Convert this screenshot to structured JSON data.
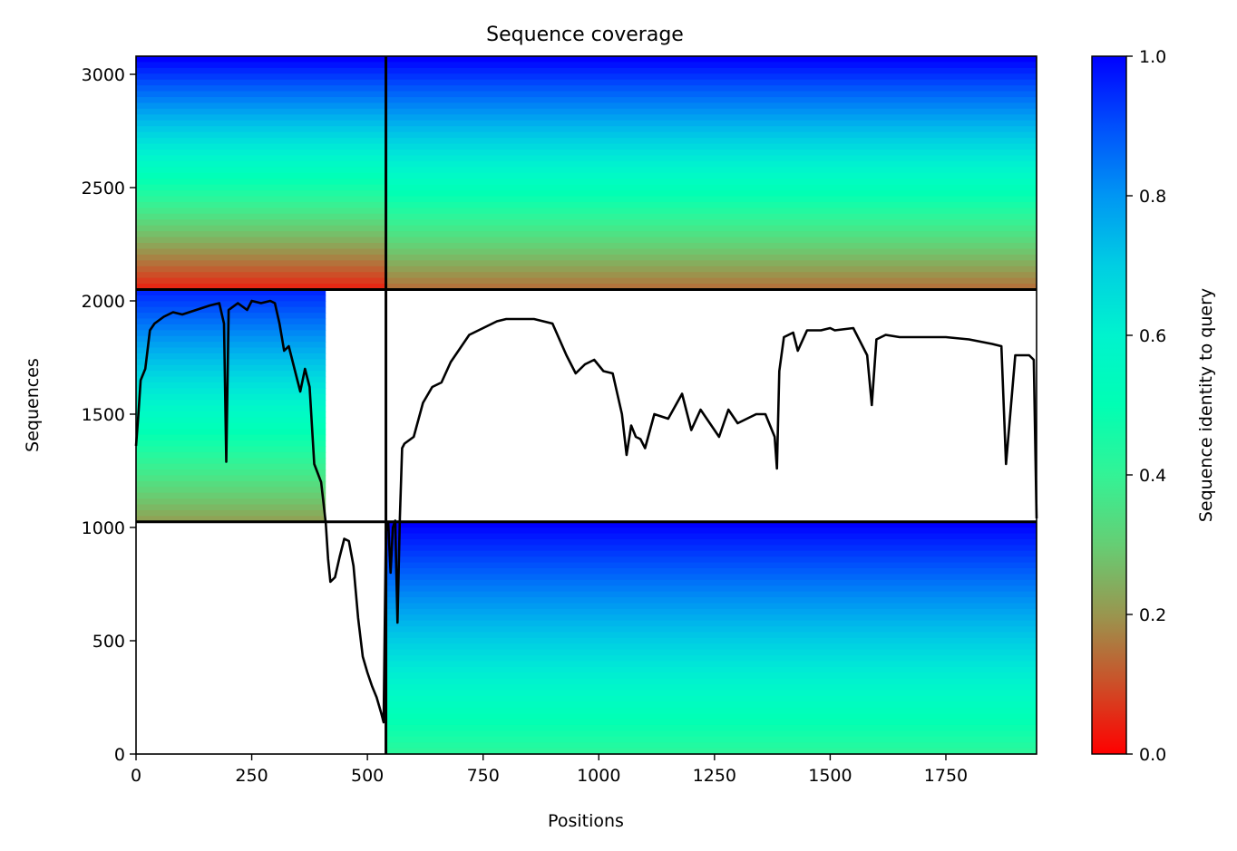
{
  "chart_data": {
    "type": "heatmap",
    "title": "Sequence coverage",
    "xlabel": "Positions",
    "ylabel": "Sequences",
    "xlim": [
      0,
      1946
    ],
    "ylim": [
      0,
      3080
    ],
    "xticks": [
      "0",
      "250",
      "500",
      "750",
      "1000",
      "1250",
      "1500",
      "1750"
    ],
    "xtick_values": [
      0,
      250,
      500,
      750,
      1000,
      1250,
      1500,
      1750
    ],
    "yticks": [
      "0",
      "500",
      "1000",
      "1500",
      "2000",
      "2500",
      "3000"
    ],
    "ytick_values": [
      0,
      500,
      1000,
      1500,
      2000,
      2500,
      3000
    ],
    "colorbar": {
      "label": "Sequence identity to query",
      "ticks": [
        "0.0",
        "0.2",
        "0.4",
        "0.6",
        "0.8",
        "1.0"
      ],
      "tick_values": [
        0,
        0.2,
        0.4,
        0.6,
        0.8,
        1.0
      ],
      "colormap": "rainbow_r"
    },
    "chain_boundaries": {
      "x": [
        540
      ],
      "y": [
        1025,
        2050
      ]
    },
    "blocks": [
      {
        "x": [
          0,
          540
        ],
        "y": [
          2050,
          3080
        ],
        "identity_top": 1.0,
        "identity_bottom": 0.05
      },
      {
        "x": [
          540,
          1946
        ],
        "y": [
          2050,
          3080
        ],
        "identity_top": 1.0,
        "identity_bottom": 0.15
      },
      {
        "x": [
          0,
          410
        ],
        "y": [
          1025,
          2050
        ],
        "identity_top": 0.95,
        "identity_bottom": 0.22
      },
      {
        "x": [
          540,
          1946
        ],
        "y": [
          0,
          1025
        ],
        "identity_top": 1.0,
        "identity_bottom": 0.42
      }
    ],
    "coverage_line": {
      "x": [
        0,
        5,
        10,
        20,
        30,
        40,
        60,
        80,
        100,
        130,
        160,
        180,
        190,
        195,
        200,
        220,
        240,
        250,
        270,
        290,
        300,
        310,
        320,
        330,
        345,
        355,
        365,
        375,
        385,
        400,
        410,
        415,
        420,
        430,
        440,
        450,
        460,
        470,
        480,
        490,
        500,
        510,
        520,
        530,
        535,
        540,
        545,
        550,
        555,
        560,
        565,
        570,
        575,
        580,
        600,
        620,
        640,
        660,
        680,
        700,
        720,
        750,
        780,
        800,
        830,
        860,
        900,
        930,
        950,
        970,
        990,
        1010,
        1030,
        1050,
        1060,
        1070,
        1080,
        1090,
        1100,
        1120,
        1150,
        1180,
        1200,
        1220,
        1240,
        1260,
        1280,
        1300,
        1320,
        1340,
        1360,
        1380,
        1385,
        1390,
        1400,
        1420,
        1430,
        1450,
        1480,
        1500,
        1510,
        1550,
        1580,
        1590,
        1600,
        1620,
        1650,
        1700,
        1750,
        1800,
        1850,
        1870,
        1880,
        1900,
        1930,
        1940,
        1946
      ],
      "y": [
        1360,
        1500,
        1650,
        1700,
        1870,
        1900,
        1930,
        1950,
        1940,
        1960,
        1980,
        1990,
        1900,
        1290,
        1960,
        1990,
        1960,
        2000,
        1990,
        2000,
        1990,
        1900,
        1780,
        1800,
        1680,
        1600,
        1700,
        1620,
        1280,
        1200,
        1020,
        860,
        760,
        780,
        870,
        950,
        940,
        830,
        600,
        430,
        360,
        300,
        250,
        180,
        140,
        980,
        1020,
        800,
        1000,
        1030,
        580,
        1040,
        1350,
        1370,
        1400,
        1550,
        1620,
        1640,
        1730,
        1790,
        1850,
        1880,
        1910,
        1920,
        1920,
        1920,
        1900,
        1760,
        1680,
        1720,
        1740,
        1690,
        1680,
        1500,
        1320,
        1450,
        1400,
        1390,
        1350,
        1500,
        1480,
        1590,
        1430,
        1520,
        1460,
        1400,
        1520,
        1460,
        1480,
        1500,
        1500,
        1400,
        1260,
        1690,
        1840,
        1860,
        1780,
        1870,
        1870,
        1880,
        1870,
        1880,
        1760,
        1540,
        1830,
        1850,
        1840,
        1840,
        1840,
        1830,
        1810,
        1800,
        1280,
        1760,
        1760,
        1740,
        1040
      ]
    }
  }
}
